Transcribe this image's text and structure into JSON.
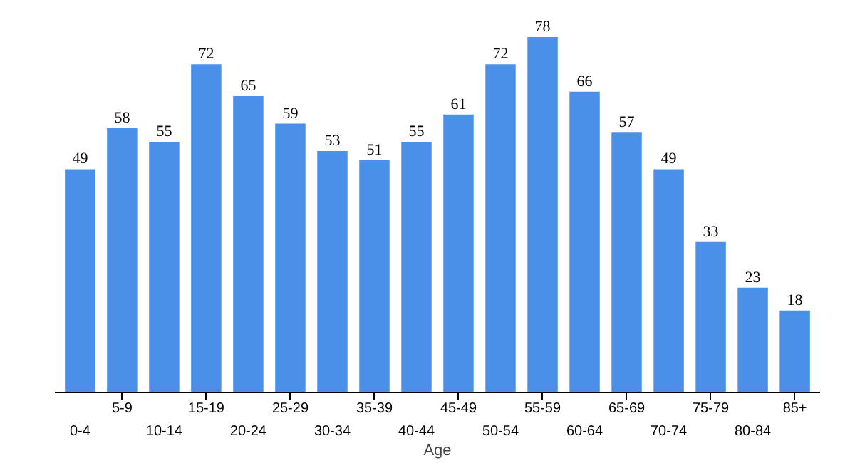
{
  "chart_data": {
    "type": "bar",
    "xlabel": "Age",
    "categories": [
      "0-4",
      "5-9",
      "10-14",
      "15-19",
      "20-24",
      "25-29",
      "30-34",
      "35-39",
      "40-44",
      "45-49",
      "50-54",
      "55-59",
      "60-64",
      "65-69",
      "70-74",
      "75-79",
      "80-84",
      "85+"
    ],
    "values": [
      49,
      58,
      55,
      72,
      65,
      59,
      53,
      51,
      55,
      61,
      72,
      78,
      66,
      57,
      49,
      33,
      23,
      18
    ],
    "color": "#4a90e8",
    "data_labels": true,
    "grid": false
  }
}
